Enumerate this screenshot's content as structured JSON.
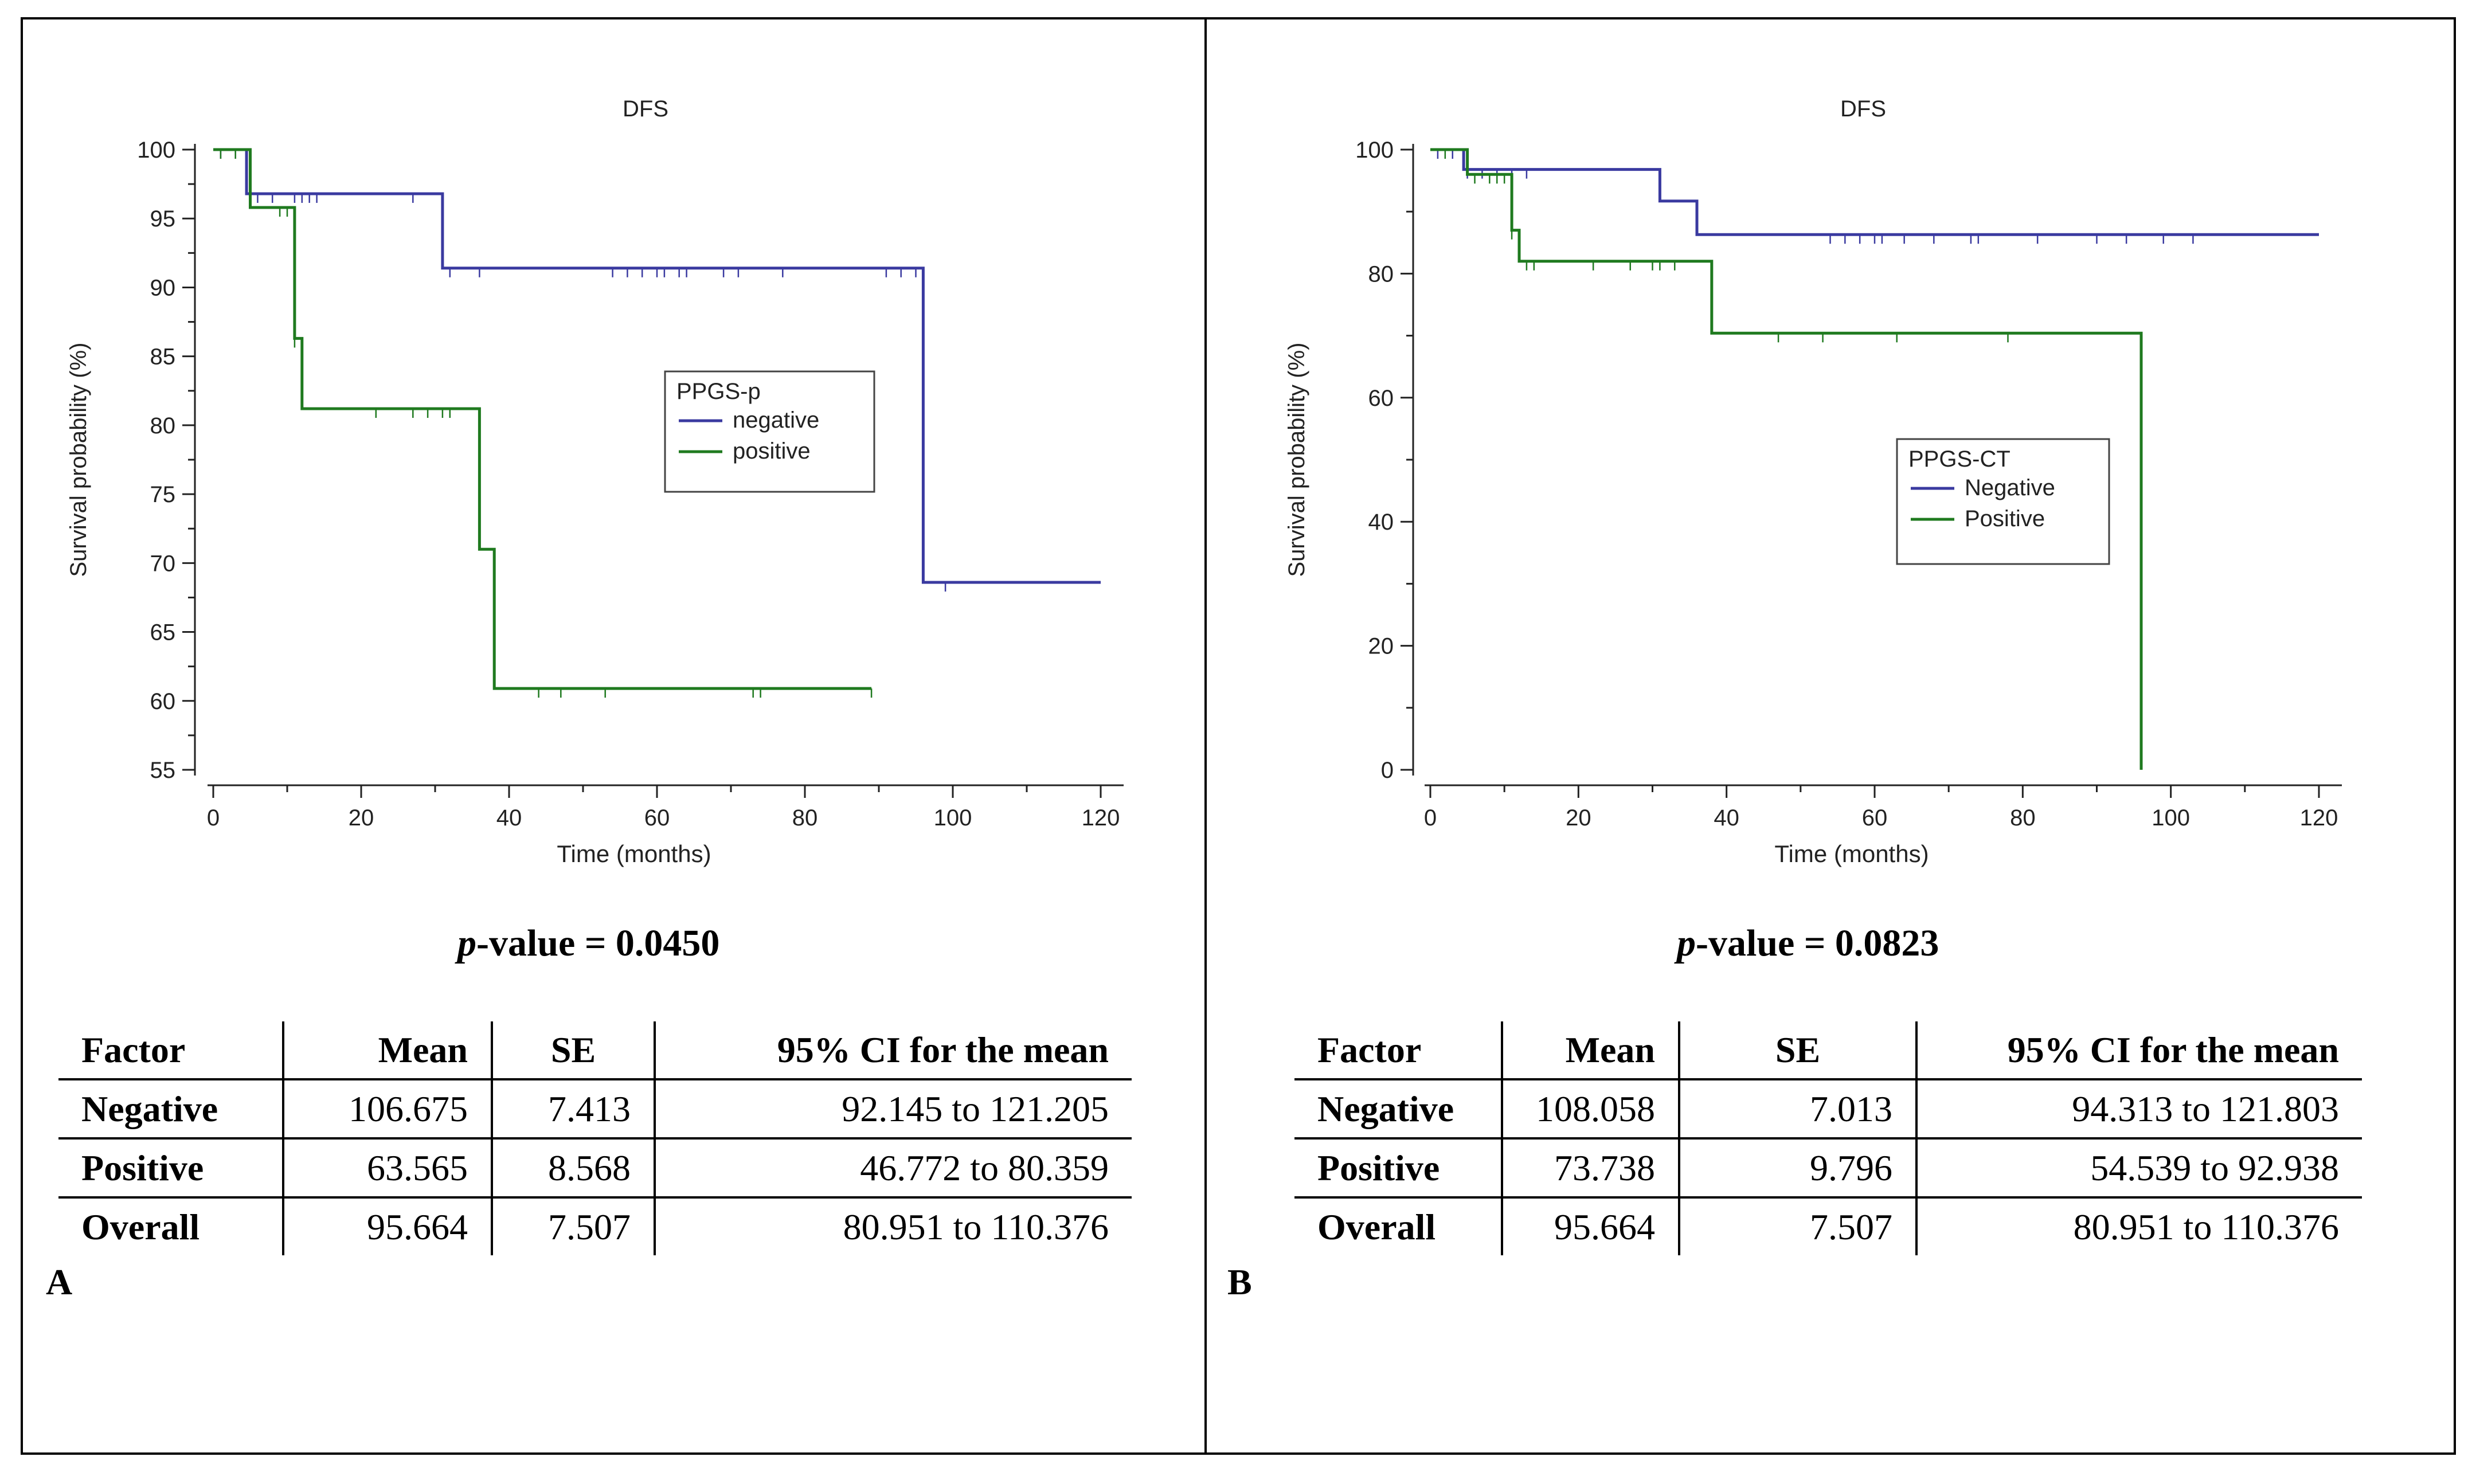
{
  "chart_data": [
    {
      "type": "line",
      "subtype": "kaplan-meier",
      "title": "DFS",
      "xlabel": "Time (months)",
      "ylabel": "Survival probability (%)",
      "xlim": [
        0,
        120
      ],
      "ylim": [
        55,
        100
      ],
      "xticks": [
        0,
        20,
        40,
        60,
        80,
        100,
        120
      ],
      "yticks": [
        55,
        60,
        65,
        70,
        75,
        80,
        85,
        90,
        95,
        100
      ],
      "legend": {
        "title": "PPGS-p",
        "position": "right-center"
      },
      "series": [
        {
          "name": "negative",
          "color": "#3a3aa0",
          "steps": [
            [
              0,
              100
            ],
            [
              4.5,
              96.8
            ],
            [
              31,
              91.4
            ],
            [
              96,
              68.6
            ],
            [
              120,
              68.6
            ]
          ],
          "censored": [
            1,
            3,
            6,
            8,
            11,
            12,
            13,
            14,
            27,
            32,
            36,
            54,
            56,
            58,
            60,
            61,
            63,
            64,
            69,
            71,
            77,
            91,
            93,
            95,
            99
          ]
        },
        {
          "name": "positive",
          "color": "#1f7a1f",
          "steps": [
            [
              0,
              100
            ],
            [
              5,
              95.8
            ],
            [
              11,
              86.3
            ],
            [
              12,
              81.2
            ],
            [
              36,
              71.0
            ],
            [
              38,
              60.9
            ],
            [
              89,
              60.9
            ]
          ],
          "censored": [
            1,
            3,
            9,
            10,
            11,
            22,
            27,
            29,
            31,
            32,
            44,
            47,
            53,
            73,
            74,
            89
          ]
        }
      ],
      "p_value_label": "-value = 0.0450",
      "p_symbol": "p",
      "table": {
        "columns": [
          "Factor",
          "Mean",
          "SE",
          "95% CI for the mean"
        ],
        "rows": [
          [
            "Negative",
            "106.675",
            "7.413",
            "92.145 to 121.205"
          ],
          [
            "Positive",
            "63.565",
            "8.568",
            "46.772 to 80.359"
          ],
          [
            "Overall",
            "95.664",
            "7.507",
            "80.951 to 110.376"
          ]
        ]
      },
      "panel_label": "A"
    },
    {
      "type": "line",
      "subtype": "kaplan-meier",
      "title": "DFS",
      "xlabel": "Time (months)",
      "ylabel": "Survival probability (%)",
      "xlim": [
        0,
        120
      ],
      "ylim": [
        0,
        100
      ],
      "xticks": [
        0,
        20,
        40,
        60,
        80,
        100,
        120
      ],
      "yticks": [
        0,
        20,
        40,
        60,
        80,
        100
      ],
      "legend": {
        "title": "PPGS-CT",
        "position": "right-center"
      },
      "series": [
        {
          "name": "Negative",
          "color": "#3a3aa0",
          "steps": [
            [
              0,
              100
            ],
            [
              4.5,
              96.8
            ],
            [
              31,
              91.7
            ],
            [
              36,
              86.3
            ],
            [
              120,
              86.3
            ]
          ],
          "censored": [
            1,
            3,
            5,
            7,
            9,
            11,
            13,
            54,
            56,
            58,
            60,
            61,
            64,
            68,
            73,
            74,
            82,
            90,
            94,
            99,
            103
          ]
        },
        {
          "name": "Positive",
          "color": "#1f7a1f",
          "steps": [
            [
              0,
              100
            ],
            [
              5,
              96
            ],
            [
              11,
              87
            ],
            [
              12,
              82
            ],
            [
              38,
              70.4
            ],
            [
              96,
              70.4
            ],
            [
              96,
              0
            ]
          ],
          "censored": [
            2,
            6,
            8,
            9,
            10,
            11,
            13,
            14,
            22,
            27,
            30,
            31,
            33,
            47,
            53,
            63,
            78
          ]
        }
      ],
      "p_value_label": "-value = 0.0823",
      "p_symbol": "p",
      "table": {
        "columns": [
          "Factor",
          "Mean",
          "SE",
          "95% CI for the mean"
        ],
        "rows": [
          [
            "Negative",
            "108.058",
            "7.013",
            "94.313 to 121.803"
          ],
          [
            "Positive",
            "73.738",
            "9.796",
            "54.539 to 92.938"
          ],
          [
            "Overall",
            "95.664",
            "7.507",
            "80.951 to 110.376"
          ]
        ]
      },
      "panel_label": "B"
    }
  ]
}
